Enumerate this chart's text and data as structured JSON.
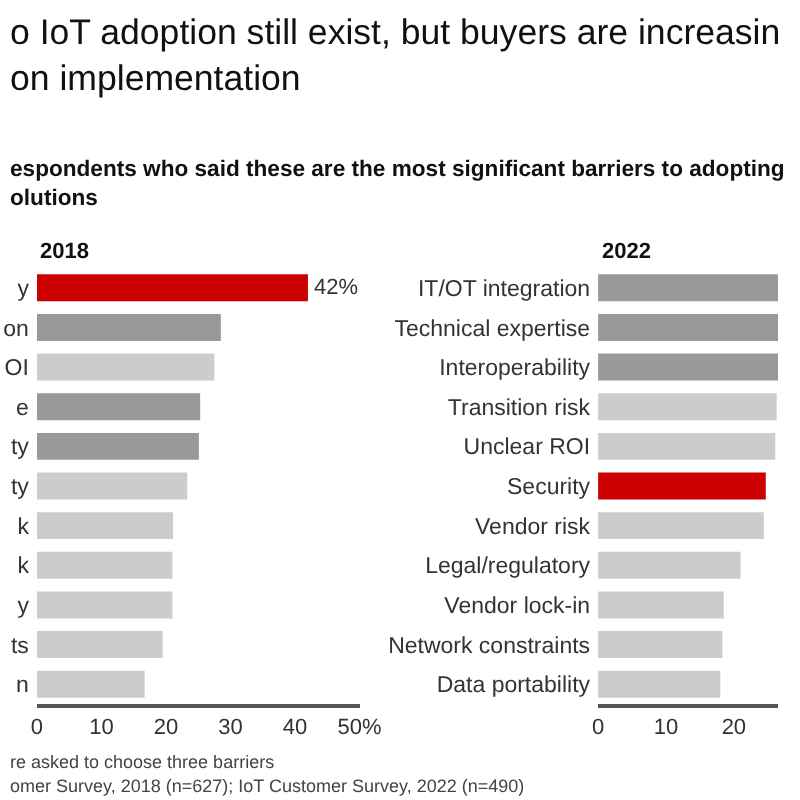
{
  "chart_data": [
    {
      "type": "bar",
      "orientation": "horizontal",
      "title": "o IoT adoption still exist, but buyers are increasin\non implementation",
      "subtitle": "espondents who said these are the most significant barriers to adopting\nolutions",
      "annotations": [
        "2018",
        "re asked to choose three barriers",
        "omer Survey, 2018 (n=627); IoT Customer Survey, 2022 (n=490)"
      ],
      "categories": [
        "y",
        "on",
        "OI",
        "e",
        "ty",
        "ty",
        "k",
        "k",
        "y",
        "ts",
        "n"
      ],
      "values": [
        42,
        28.5,
        27.5,
        25.3,
        25.1,
        23.3,
        21.1,
        21,
        21,
        19.5,
        16.7
      ],
      "colors": [
        "#cc0000",
        "#999999",
        "#cccccc",
        "#999999",
        "#999999",
        "#cccccc",
        "#cccccc",
        "#cccccc",
        "#cccccc",
        "#cccccc",
        "#cccccc"
      ],
      "value_labels": [
        "42%",
        null,
        null,
        null,
        null,
        null,
        null,
        null,
        null,
        null,
        null
      ],
      "xlim": [
        0,
        50
      ],
      "xticks": [
        0,
        10,
        20,
        30,
        40,
        {
          "value": 50,
          "label": "50%"
        }
      ]
    },
    {
      "type": "bar",
      "orientation": "horizontal",
      "annotations": [
        "2022"
      ],
      "categories": [
        "IT/OT integration",
        "Technical expertise",
        "Interoperability",
        "Transition risk",
        "Unclear ROI",
        "Security",
        "Vendor risk",
        "Legal/regulatory",
        "Vendor lock-in",
        "Network constraints",
        "Data portability"
      ],
      "values": [
        26.5,
        26.5,
        26.5,
        26.3,
        26.1,
        24.7,
        24.4,
        21,
        18.5,
        18.3,
        18
      ],
      "colors": [
        "#999999",
        "#999999",
        "#999999",
        "#cccccc",
        "#cccccc",
        "#cc0000",
        "#cccccc",
        "#cccccc",
        "#cccccc",
        "#cccccc",
        "#cccccc"
      ],
      "xlim": [
        0,
        26.5
      ],
      "xticks": [
        0,
        10,
        20
      ]
    }
  ]
}
